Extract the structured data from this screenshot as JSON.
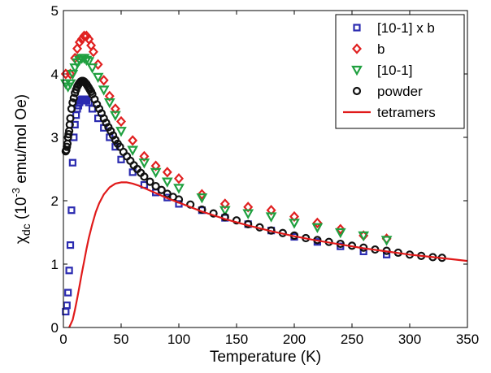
{
  "chart_data": {
    "type": "scatter",
    "xlabel": "Temperature (K)",
    "ylabel": {
      "symbol": "χ",
      "symbol_sub": "dc",
      "open": " (10",
      "exp": "-3",
      "unit": " emu/mol Oe)"
    },
    "xlim": [
      0,
      350
    ],
    "ylim": [
      0,
      5
    ],
    "xticks": [
      0,
      50,
      100,
      150,
      200,
      250,
      300,
      350
    ],
    "yticks": [
      0,
      1,
      2,
      3,
      4,
      5
    ],
    "grid": false,
    "legend_position": "top-right",
    "series": [
      {
        "name": "[10-1] x b",
        "marker": "square",
        "color": "#2b2bb0",
        "x": [
          2,
          3,
          4,
          5,
          6,
          7,
          8,
          9,
          10,
          11,
          12,
          13,
          14,
          15,
          16,
          17,
          18,
          19,
          20,
          22,
          25,
          30,
          35,
          40,
          45,
          50,
          60,
          70,
          80,
          90,
          100,
          120,
          140,
          160,
          180,
          200,
          220,
          240,
          260,
          280
        ],
        "y": [
          0.25,
          0.35,
          0.55,
          0.9,
          1.3,
          1.85,
          2.6,
          3.0,
          3.2,
          3.35,
          3.45,
          3.5,
          3.55,
          3.58,
          3.6,
          3.6,
          3.6,
          3.6,
          3.58,
          3.55,
          3.45,
          3.3,
          3.15,
          3.0,
          2.85,
          2.65,
          2.45,
          2.25,
          2.13,
          2.05,
          1.95,
          1.85,
          1.73,
          1.63,
          1.53,
          1.43,
          1.35,
          1.28,
          1.2,
          1.15
        ]
      },
      {
        "name": "b",
        "marker": "diamond",
        "color": "#e02020",
        "x": [
          2,
          6,
          10,
          12,
          14,
          16,
          18,
          20,
          22,
          24,
          26,
          30,
          35,
          40,
          45,
          50,
          60,
          70,
          80,
          90,
          100,
          120,
          140,
          160,
          180,
          200,
          220,
          240,
          260,
          280
        ],
        "y": [
          4.0,
          4.0,
          4.25,
          4.4,
          4.5,
          4.55,
          4.6,
          4.6,
          4.55,
          4.45,
          4.35,
          4.15,
          3.9,
          3.65,
          3.45,
          3.25,
          2.95,
          2.7,
          2.55,
          2.45,
          2.35,
          2.1,
          1.95,
          1.9,
          1.85,
          1.75,
          1.65,
          1.55,
          1.45,
          1.4
        ]
      },
      {
        "name": "[10-1]",
        "marker": "triangle-down",
        "color": "#20a040",
        "x": [
          2,
          4,
          6,
          8,
          10,
          12,
          14,
          16,
          18,
          20,
          22,
          25,
          30,
          35,
          40,
          45,
          50,
          60,
          70,
          80,
          90,
          100,
          120,
          140,
          160,
          180,
          200,
          220,
          240,
          260,
          280
        ],
        "y": [
          3.85,
          3.8,
          3.85,
          4.0,
          4.1,
          4.18,
          4.22,
          4.25,
          4.25,
          4.22,
          4.2,
          4.1,
          3.95,
          3.75,
          3.55,
          3.35,
          3.1,
          2.8,
          2.6,
          2.45,
          2.3,
          2.2,
          2.05,
          1.85,
          1.8,
          1.75,
          1.65,
          1.58,
          1.5,
          1.45,
          1.38
        ]
      },
      {
        "name": "powder",
        "marker": "circle",
        "color": "#111111",
        "x": [
          2,
          2.5,
          3,
          3.5,
          4,
          4.5,
          5,
          5.5,
          6,
          7,
          8,
          9,
          10,
          11,
          12,
          13,
          14,
          15,
          16,
          17,
          18,
          19,
          20,
          21,
          22,
          23,
          24,
          25,
          27,
          29,
          31,
          33,
          35,
          37,
          39,
          41,
          43,
          45,
          47,
          49,
          52,
          55,
          58,
          61,
          64,
          67,
          70,
          75,
          80,
          85,
          90,
          95,
          100,
          110,
          120,
          130,
          140,
          150,
          160,
          170,
          180,
          190,
          200,
          210,
          220,
          230,
          240,
          250,
          260,
          270,
          280,
          290,
          300,
          310,
          320,
          328
        ],
        "y": [
          2.78,
          2.8,
          2.85,
          2.9,
          3.0,
          3.05,
          3.1,
          3.2,
          3.3,
          3.45,
          3.55,
          3.62,
          3.7,
          3.75,
          3.8,
          3.83,
          3.86,
          3.88,
          3.89,
          3.89,
          3.88,
          3.86,
          3.84,
          3.81,
          3.78,
          3.75,
          3.72,
          3.68,
          3.6,
          3.52,
          3.45,
          3.38,
          3.3,
          3.23,
          3.16,
          3.1,
          3.03,
          2.96,
          2.9,
          2.85,
          2.77,
          2.7,
          2.63,
          2.56,
          2.5,
          2.44,
          2.38,
          2.3,
          2.23,
          2.17,
          2.11,
          2.06,
          2.02,
          1.94,
          1.86,
          1.8,
          1.74,
          1.69,
          1.63,
          1.58,
          1.53,
          1.49,
          1.45,
          1.41,
          1.38,
          1.35,
          1.32,
          1.29,
          1.26,
          1.23,
          1.21,
          1.18,
          1.15,
          1.13,
          1.11,
          1.1
        ]
      },
      {
        "name": "tetramers",
        "marker": "line",
        "color": "#e01a1a",
        "x": [
          5,
          8,
          10,
          12,
          14,
          16,
          18,
          20,
          22,
          25,
          28,
          31,
          35,
          40,
          45,
          50,
          55,
          60,
          65,
          70,
          80,
          90,
          100,
          120,
          140,
          160,
          180,
          200,
          220,
          240,
          260,
          280,
          300,
          320,
          340,
          350
        ],
        "y": [
          0.0,
          0.12,
          0.28,
          0.46,
          0.66,
          0.86,
          1.05,
          1.24,
          1.41,
          1.63,
          1.82,
          1.96,
          2.1,
          2.21,
          2.27,
          2.29,
          2.29,
          2.27,
          2.24,
          2.2,
          2.12,
          2.04,
          1.97,
          1.83,
          1.71,
          1.61,
          1.52,
          1.44,
          1.37,
          1.31,
          1.25,
          1.2,
          1.15,
          1.11,
          1.07,
          1.05
        ]
      }
    ]
  }
}
